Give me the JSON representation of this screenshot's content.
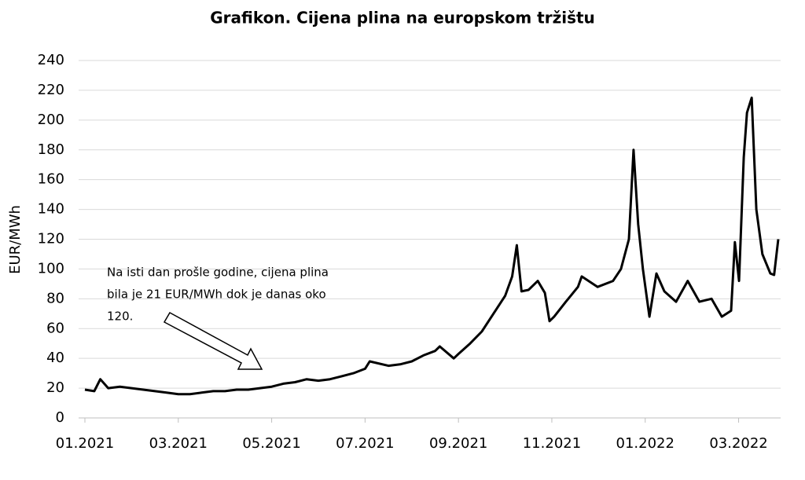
{
  "chart_data": {
    "type": "line",
    "title": "Grafikon. Cijena plina na europskom tržištu",
    "y_label": "EUR/MWh",
    "annotation": [
      "Na isti dan prošle godine, cijena plina",
      "bila je 21 EUR/MWh dok je danas oko",
      "120."
    ],
    "color": "#000000",
    "grid": true,
    "xlim": [
      0,
      14.9
    ],
    "xticks": [
      {
        "value": 0,
        "label": "01.2021"
      },
      {
        "value": 2,
        "label": "03.2021"
      },
      {
        "value": 4,
        "label": "05.2021"
      },
      {
        "value": 6,
        "label": "07.2021"
      },
      {
        "value": 8,
        "label": "09.2021"
      },
      {
        "value": 10,
        "label": "11.2021"
      },
      {
        "value": 12,
        "label": "01.2022"
      },
      {
        "value": 14,
        "label": "03.2022"
      }
    ],
    "ylim": [
      0,
      240
    ],
    "yticks": [
      0,
      20,
      40,
      60,
      80,
      100,
      120,
      140,
      160,
      180,
      200,
      220,
      240
    ],
    "x": [
      0,
      0.2,
      0.33,
      0.5,
      0.75,
      1.0,
      1.25,
      1.5,
      1.75,
      2.0,
      2.25,
      2.5,
      2.75,
      3.0,
      3.25,
      3.5,
      3.75,
      4.0,
      4.25,
      4.5,
      4.75,
      5.0,
      5.25,
      5.5,
      5.75,
      6.0,
      6.1,
      6.5,
      6.75,
      7.0,
      7.25,
      7.5,
      7.6,
      7.9,
      8.0,
      8.25,
      8.5,
      8.75,
      9.0,
      9.15,
      9.25,
      9.35,
      9.5,
      9.7,
      9.85,
      9.95,
      10.05,
      10.3,
      10.56,
      10.64,
      10.98,
      11.31,
      11.48,
      11.65,
      11.75,
      11.85,
      11.95,
      12.09,
      12.24,
      12.41,
      12.66,
      12.91,
      13.16,
      13.42,
      13.64,
      13.84,
      13.92,
      14.01,
      14.11,
      14.18,
      14.28,
      14.38,
      14.51,
      14.68,
      14.76,
      14.85
    ],
    "values": [
      19,
      18,
      26,
      20,
      21,
      20,
      19,
      18,
      17,
      16,
      16,
      17,
      18,
      18,
      19,
      19,
      20,
      21,
      23,
      24,
      26,
      25,
      26,
      28,
      30,
      33,
      38,
      35,
      36,
      38,
      42,
      45,
      48,
      40,
      43,
      50,
      58,
      70,
      82,
      95,
      116,
      85,
      86,
      92,
      84,
      65,
      68,
      78,
      88,
      95,
      88,
      92,
      100,
      120,
      180,
      130,
      100,
      68,
      97,
      85,
      78,
      92,
      78,
      80,
      68,
      72,
      118,
      92,
      175,
      205,
      215,
      140,
      110,
      97,
      96,
      120
    ]
  }
}
